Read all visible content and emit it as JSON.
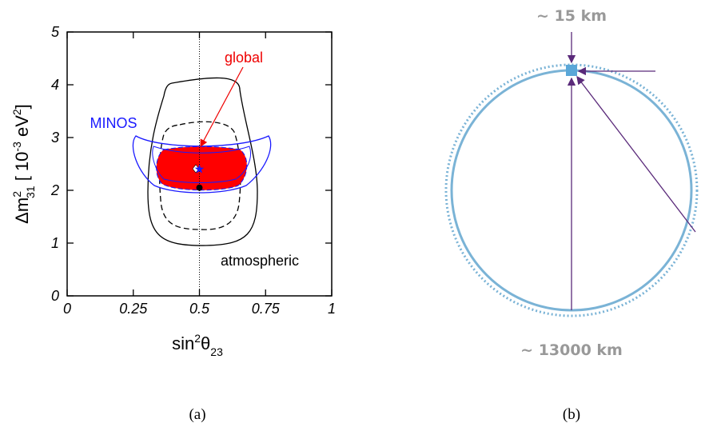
{
  "chart_data": {
    "type": "scatter",
    "x_label": [
      "sin",
      "2",
      "θ",
      "23"
    ],
    "y_label": [
      "Δm",
      "2",
      "31",
      " [ 10",
      "-3",
      " eV",
      "2",
      "]"
    ],
    "xlim": [
      0,
      1
    ],
    "ylim": [
      0,
      5
    ],
    "xticks": [
      0,
      0.25,
      0.5,
      0.75,
      1
    ],
    "yticks": [
      0,
      1,
      2,
      3,
      4,
      5
    ],
    "grid": false,
    "points": [
      {
        "x": 0.5,
        "y": 2.4,
        "color": "#1a1aff",
        "marker": "star"
      },
      {
        "x": 0.5,
        "y": 2.05,
        "color": "#000000",
        "marker": "dot"
      }
    ],
    "annotations": {
      "global": "global",
      "minos": "MINOS",
      "atmospheric": "atmospheric"
    },
    "caption": "(a)"
  },
  "diagram": {
    "top_label": "~ 15 km",
    "bottom_label": "~ 13000 km",
    "caption": "(b)"
  }
}
